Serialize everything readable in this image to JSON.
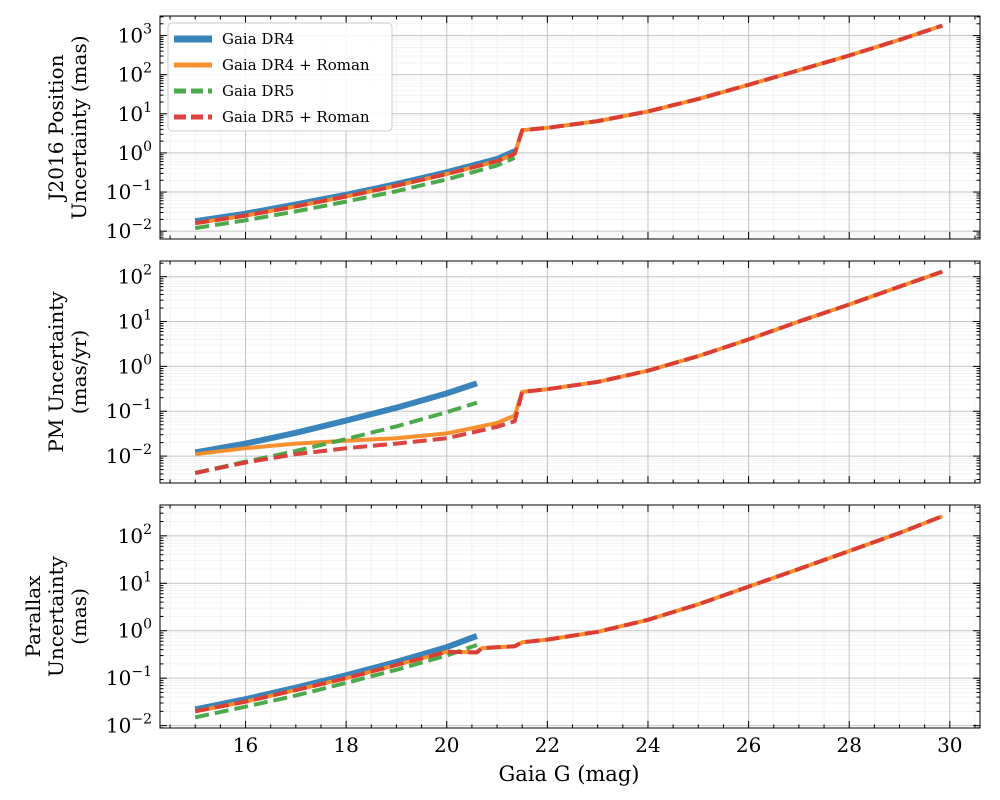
{
  "chart_data": [
    {
      "type": "line",
      "id": "position",
      "ylabel_lines": [
        "J2016 Position",
        "Uncertainty (mas)"
      ],
      "ylog_range": [
        -2.2,
        3.5
      ],
      "yticks": [
        {
          "exp": -2,
          "label": "10",
          "sup": "−2"
        },
        {
          "exp": -1,
          "label": "10",
          "sup": "−1"
        },
        {
          "exp": 0,
          "label": "10",
          "sup": "0"
        },
        {
          "exp": 1,
          "label": "10",
          "sup": "1"
        },
        {
          "exp": 2,
          "label": "10",
          "sup": "2"
        },
        {
          "exp": 3,
          "label": "10",
          "sup": "3"
        }
      ],
      "series": [
        {
          "name": "Gaia DR4",
          "x": [
            15,
            16,
            17,
            18,
            19,
            20,
            21,
            21.35
          ],
          "y": [
            0.018,
            0.028,
            0.048,
            0.085,
            0.16,
            0.32,
            0.7,
            1.1
          ]
        },
        {
          "name": "Gaia DR4 + Roman",
          "x": [
            15,
            16,
            17,
            18,
            19,
            20,
            21,
            21.35,
            21.5,
            22,
            23,
            24,
            25,
            26,
            27,
            28,
            29,
            29.85
          ],
          "y": [
            0.016,
            0.025,
            0.043,
            0.077,
            0.145,
            0.29,
            0.62,
            0.95,
            3.8,
            4.4,
            6.5,
            11.5,
            24,
            55,
            130,
            310,
            780,
            1800
          ]
        },
        {
          "name": "Gaia DR5",
          "x": [
            15,
            16,
            17,
            18,
            19,
            20,
            21,
            21.35
          ],
          "y": [
            0.012,
            0.019,
            0.032,
            0.057,
            0.105,
            0.21,
            0.48,
            0.75
          ]
        },
        {
          "name": "Gaia DR5 + Roman",
          "x": [
            15,
            16,
            17,
            18,
            19,
            20,
            21,
            21.35,
            21.5,
            22,
            23,
            24,
            25,
            26,
            27,
            28,
            29,
            29.85
          ],
          "y": [
            0.016,
            0.025,
            0.043,
            0.077,
            0.145,
            0.29,
            0.62,
            0.95,
            3.8,
            4.4,
            6.5,
            11.5,
            24,
            55,
            130,
            310,
            780,
            1800
          ]
        }
      ]
    },
    {
      "type": "line",
      "id": "pm",
      "ylabel_lines": [
        "PM Uncertainty",
        "(mas/yr)"
      ],
      "ylog_range": [
        -2.6,
        2.35
      ],
      "yticks": [
        {
          "exp": -2,
          "label": "10",
          "sup": "−2"
        },
        {
          "exp": -1,
          "label": "10",
          "sup": "−1"
        },
        {
          "exp": 0,
          "label": "10",
          "sup": "0"
        },
        {
          "exp": 1,
          "label": "10",
          "sup": "1"
        },
        {
          "exp": 2,
          "label": "10",
          "sup": "2"
        }
      ],
      "series": [
        {
          "name": "Gaia DR4",
          "x": [
            15,
            16,
            17,
            18,
            19,
            20,
            20.6
          ],
          "y": [
            0.012,
            0.019,
            0.033,
            0.062,
            0.12,
            0.25,
            0.42
          ]
        },
        {
          "name": "Gaia DR4 + Roman",
          "x": [
            15,
            16,
            17,
            18,
            19,
            20,
            21,
            21.35,
            21.5,
            22,
            23,
            24,
            25,
            26,
            27,
            28,
            29,
            29.85
          ],
          "y": [
            0.011,
            0.015,
            0.019,
            0.022,
            0.025,
            0.032,
            0.055,
            0.08,
            0.27,
            0.31,
            0.45,
            0.8,
            1.7,
            4,
            10,
            24,
            60,
            130
          ]
        },
        {
          "name": "Gaia DR5",
          "x": [
            15,
            16,
            17,
            18,
            19,
            20,
            20.6
          ],
          "y": [
            0.0042,
            0.0075,
            0.013,
            0.024,
            0.046,
            0.095,
            0.155
          ]
        },
        {
          "name": "Gaia DR5 + Roman",
          "x": [
            15,
            16,
            17,
            18,
            19,
            20,
            21,
            21.35,
            21.5,
            22,
            23,
            24,
            25,
            26,
            27,
            28,
            29,
            29.85
          ],
          "y": [
            0.0042,
            0.0072,
            0.011,
            0.015,
            0.019,
            0.025,
            0.045,
            0.06,
            0.27,
            0.31,
            0.45,
            0.8,
            1.7,
            4,
            10,
            24,
            60,
            130
          ]
        }
      ]
    },
    {
      "type": "line",
      "id": "parallax",
      "ylabel_lines": [
        "Parallax",
        "Uncertainty",
        "(mas)"
      ],
      "ylog_range": [
        -2.05,
        2.65
      ],
      "yticks": [
        {
          "exp": -2,
          "label": "10",
          "sup": "−2"
        },
        {
          "exp": -1,
          "label": "10",
          "sup": "−1"
        },
        {
          "exp": 0,
          "label": "10",
          "sup": "0"
        },
        {
          "exp": 1,
          "label": "10",
          "sup": "1"
        },
        {
          "exp": 2,
          "label": "10",
          "sup": "2"
        }
      ],
      "series": [
        {
          "name": "Gaia DR4",
          "x": [
            15,
            16,
            17,
            18,
            19,
            20,
            20.6
          ],
          "y": [
            0.022,
            0.036,
            0.063,
            0.115,
            0.22,
            0.45,
            0.78
          ]
        },
        {
          "name": "Gaia DR4 + Roman",
          "x": [
            15,
            16,
            17,
            18,
            19,
            20,
            20.6,
            20.7,
            21,
            21.35,
            21.5,
            22,
            23,
            24,
            25,
            26,
            27,
            28,
            29,
            29.85
          ],
          "y": [
            0.02,
            0.032,
            0.056,
            0.1,
            0.19,
            0.36,
            0.35,
            0.43,
            0.45,
            0.47,
            0.57,
            0.65,
            0.95,
            1.7,
            3.6,
            8.5,
            20,
            48,
            115,
            260
          ]
        },
        {
          "name": "Gaia DR5",
          "x": [
            15,
            16,
            17,
            18,
            19,
            20,
            20.6
          ],
          "y": [
            0.015,
            0.025,
            0.043,
            0.08,
            0.15,
            0.3,
            0.5
          ]
        },
        {
          "name": "Gaia DR5 + Roman",
          "x": [
            15,
            16,
            17,
            18,
            19,
            20,
            20.6,
            20.7,
            21,
            21.35,
            21.5,
            22,
            23,
            24,
            25,
            26,
            27,
            28,
            29,
            29.85
          ],
          "y": [
            0.02,
            0.032,
            0.056,
            0.1,
            0.19,
            0.36,
            0.35,
            0.43,
            0.45,
            0.47,
            0.57,
            0.65,
            0.95,
            1.7,
            3.6,
            8.5,
            20,
            48,
            115,
            260
          ]
        }
      ]
    }
  ],
  "shared": {
    "xlabel": "Gaia G (mag)",
    "xlim": [
      14.3,
      30.6
    ],
    "xticks": [
      16,
      18,
      20,
      22,
      24,
      26,
      28,
      30
    ],
    "colors": {
      "Gaia DR4": "#3884bb",
      "Gaia DR4 + Roman": "#f78b25",
      "Gaia DR5": "#42a542",
      "Gaia DR5 + Roman": "#d93a36"
    },
    "legend": {
      "location": "top-left",
      "entries": [
        "Gaia DR4",
        "Gaia DR4 + Roman",
        "Gaia DR5",
        "Gaia DR5 + Roman"
      ]
    }
  }
}
